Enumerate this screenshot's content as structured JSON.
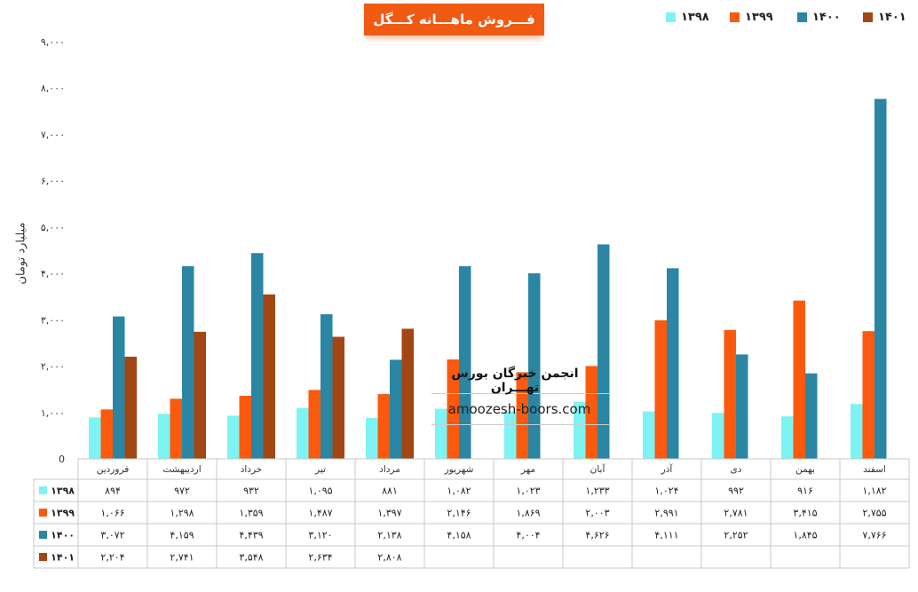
{
  "chart_data": {
    "type": "bar",
    "title": "فـــروش ماهـــانه کـــگل",
    "ylabel": "میلیارد تومان",
    "ylim": [
      0,
      9000
    ],
    "yticks": [
      "0",
      "۱,۰۰۰",
      "۲,۰۰۰",
      "۳,۰۰۰",
      "۴,۰۰۰",
      "۵,۰۰۰",
      "۶,۰۰۰",
      "۷,۰۰۰",
      "۸,۰۰۰",
      "۹,۰۰۰"
    ],
    "grid": false,
    "legend_position": "top-right",
    "categories": [
      "فروردین",
      "اردیبهشت",
      "خرداد",
      "تیر",
      "مرداد",
      "شهریور",
      "مهر",
      "آبان",
      "آذر",
      "دی",
      "بهمن",
      "اسفند"
    ],
    "series": [
      {
        "name": "۱۳۹۸",
        "color": "#7ef3f3",
        "values": [
          894,
          972,
          932,
          1095,
          881,
          1082,
          1023,
          1233,
          1024,
          992,
          916,
          1182
        ],
        "labels": [
          "۸۹۴",
          "۹۷۲",
          "۹۳۲",
          "۱,۰۹۵",
          "۸۸۱",
          "۱,۰۸۲",
          "۱,۰۲۳",
          "۱,۲۳۳",
          "۱,۰۲۴",
          "۹۹۲",
          "۹۱۶",
          "۱,۱۸۲"
        ]
      },
      {
        "name": "۱۳۹۹",
        "color": "#fb5a0e",
        "values": [
          1066,
          1298,
          1359,
          1487,
          1397,
          2146,
          1869,
          2003,
          2991,
          2781,
          3415,
          2755
        ],
        "labels": [
          "۱,۰۶۶",
          "۱,۲۹۸",
          "۱,۳۵۹",
          "۱,۴۸۷",
          "۱,۳۹۷",
          "۲,۱۴۶",
          "۱,۸۶۹",
          "۲,۰۰۳",
          "۲,۹۹۱",
          "۲,۷۸۱",
          "۳,۴۱۵",
          "۲,۷۵۵"
        ]
      },
      {
        "name": "۱۴۰۰",
        "color": "#2a86a3",
        "values": [
          3072,
          4159,
          4439,
          3120,
          2138,
          4158,
          4004,
          4626,
          4111,
          2252,
          1845,
          7766
        ],
        "labels": [
          "۳,۰۷۲",
          "۴,۱۵۹",
          "۴,۴۳۹",
          "۳,۱۲۰",
          "۲,۱۳۸",
          "۴,۱۵۸",
          "۴,۰۰۴",
          "۴,۶۲۶",
          "۴,۱۱۱",
          "۲,۲۵۲",
          "۱,۸۴۵",
          "۷,۷۶۶"
        ]
      },
      {
        "name": "۱۴۰۱",
        "color": "#a24614",
        "values": [
          2204,
          2741,
          3548,
          2634,
          2808,
          null,
          null,
          null,
          null,
          null,
          null,
          null
        ],
        "labels": [
          "۲,۲۰۴",
          "۲,۷۴۱",
          "۳,۵۴۸",
          "۲,۶۳۴",
          "۲,۸۰۸",
          "",
          "",
          "",
          "",
          "",
          "",
          ""
        ]
      }
    ],
    "watermark": {
      "line1": "انجمن خبرگان بورس تهـــران",
      "line2": "amoozesh-boors.com"
    }
  }
}
